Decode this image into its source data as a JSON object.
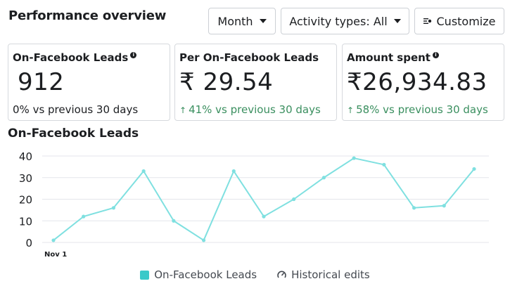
{
  "header": {
    "title": "Performance overview",
    "month_label": "Month",
    "activity_label": "Activity types: All",
    "customize_label": "Customize"
  },
  "cards": [
    {
      "label": "On-Facebook Leads",
      "has_info": true,
      "value": "912",
      "compare": "0% vs previous 30 days",
      "trend": "none"
    },
    {
      "label": "Per On-Facebook Leads",
      "has_info": false,
      "value": "₹ 29.54",
      "compare": "41% vs previous 30 days",
      "trend": "up"
    },
    {
      "label": "Amount spent",
      "has_info": true,
      "value": "₹26,934.83",
      "compare": "58%  vs previous 30 days",
      "trend": "up"
    }
  ],
  "colors": {
    "series": "#7fe0e0",
    "legend_swatch": "#3ac9c9",
    "trend_up": "#3a8f5f"
  },
  "chart_data": {
    "type": "line",
    "title": "On-Facebook Leads",
    "x": [
      "Nov 1",
      "",
      "",
      "",
      "",
      "",
      "",
      "",
      "",
      "",
      "",
      "",
      "",
      "",
      ""
    ],
    "x_tick_labels": [
      "Nov 1"
    ],
    "series": [
      {
        "name": "On-Facebook Leads",
        "values": [
          1,
          12,
          16,
          33,
          10,
          1,
          33,
          12,
          20,
          30,
          39,
          36,
          16,
          17,
          34
        ]
      }
    ],
    "ylim": [
      0,
      40
    ],
    "yticks": [
      0,
      10,
      20,
      30,
      40
    ],
    "grid": true,
    "legend": [
      "On-Facebook Leads",
      "Historical edits"
    ],
    "legend_position": "bottom"
  }
}
